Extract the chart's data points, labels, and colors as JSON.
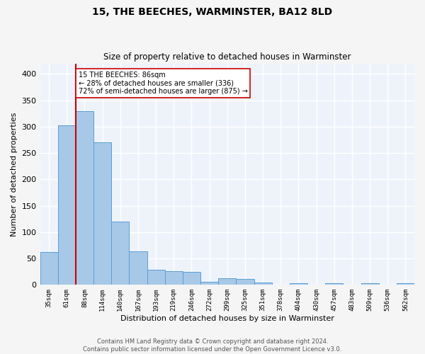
{
  "title1": "15, THE BEECHES, WARMINSTER, BA12 8LD",
  "title2": "Size of property relative to detached houses in Warminster",
  "xlabel": "Distribution of detached houses by size in Warminster",
  "ylabel": "Number of detached properties",
  "categories": [
    "35sqm",
    "61sqm",
    "88sqm",
    "114sqm",
    "140sqm",
    "167sqm",
    "193sqm",
    "219sqm",
    "246sqm",
    "272sqm",
    "299sqm",
    "325sqm",
    "351sqm",
    "378sqm",
    "404sqm",
    "430sqm",
    "457sqm",
    "483sqm",
    "509sqm",
    "536sqm",
    "562sqm"
  ],
  "values": [
    62,
    302,
    330,
    270,
    120,
    63,
    29,
    26,
    25,
    6,
    12,
    11,
    4,
    0,
    3,
    0,
    3,
    0,
    3,
    0,
    3
  ],
  "bar_color": "#a8c8e8",
  "bar_edge_color": "#5a9fd4",
  "vline_index": 2,
  "vline_color": "#cc0000",
  "annotation_text": "15 THE BEECHES: 86sqm\n← 28% of detached houses are smaller (336)\n72% of semi-detached houses are larger (875) →",
  "annotation_box_color": "#ffffff",
  "annotation_box_edge": "#cc0000",
  "bg_color": "#eef3fb",
  "grid_color": "#ffffff",
  "footer": "Contains HM Land Registry data © Crown copyright and database right 2024.\nContains public sector information licensed under the Open Government Licence v3.0.",
  "fig_bg_color": "#f5f5f5",
  "ylim": [
    0,
    420
  ],
  "yticks": [
    0,
    50,
    100,
    150,
    200,
    250,
    300,
    350,
    400
  ]
}
